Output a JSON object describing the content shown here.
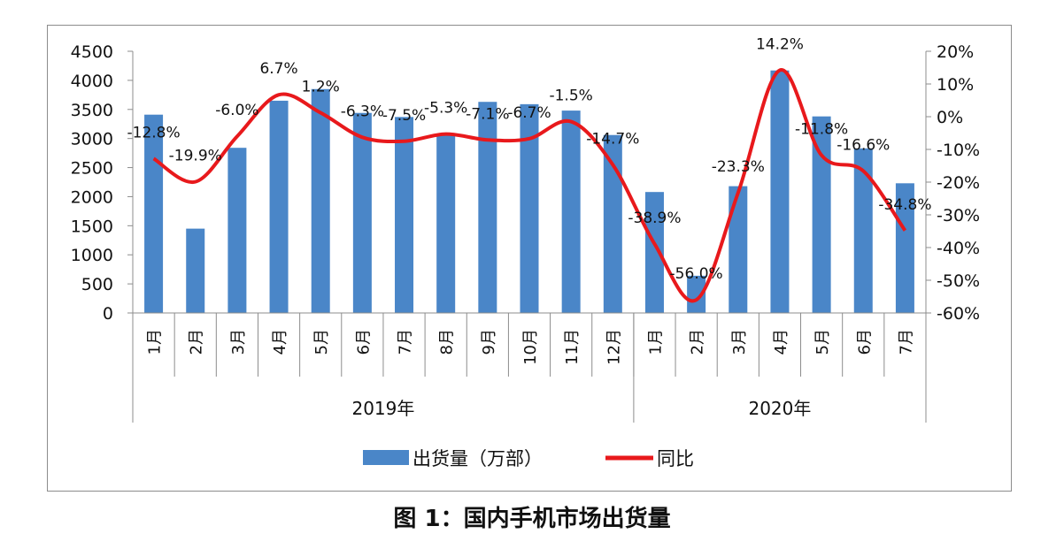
{
  "chart_data": {
    "type": "bar+line",
    "title": "图 1：国内手机市场出货量",
    "categories": [
      "1月",
      "2月",
      "3月",
      "4月",
      "5月",
      "6月",
      "7月",
      "8月",
      "9月",
      "10月",
      "11月",
      "12月",
      "1月",
      "2月",
      "3月",
      "4月",
      "5月",
      "6月",
      "7月"
    ],
    "groups": [
      {
        "label": "2019年",
        "count": 12
      },
      {
        "label": "2020年",
        "count": 7
      }
    ],
    "series": [
      {
        "name": "出货量（万部）",
        "type": "bar",
        "axis": "left",
        "color": "#4a86c8",
        "values": [
          3410,
          1450,
          2840,
          3650,
          3850,
          3440,
          3370,
          3080,
          3630,
          3590,
          3480,
          3060,
          2080,
          640,
          2180,
          4170,
          3380,
          2830,
          2230
        ]
      },
      {
        "name": "同比",
        "type": "line",
        "axis": "right",
        "color": "#e8191c",
        "values": [
          -12.8,
          -19.9,
          -6.0,
          6.7,
          1.2,
          -6.3,
          -7.5,
          -5.3,
          -7.1,
          -6.7,
          -1.5,
          -14.7,
          -38.9,
          -56.0,
          -23.3,
          14.2,
          -11.8,
          -16.6,
          -34.8
        ],
        "labels": [
          "-12.8%",
          "-19.9%",
          "-6.0%",
          "6.7%",
          "1.2%",
          "-6.3%",
          "-7.5%",
          "-5.3%",
          "-7.1%",
          "-6.7%",
          "-1.5%",
          "-14.7%",
          "-38.9%",
          "-56.0%",
          "-23.3%",
          "14.2%",
          "-11.8%",
          "-16.6%",
          "-34.8%"
        ]
      }
    ],
    "y_left": {
      "min": 0,
      "max": 4500,
      "step": 500,
      "ticks": [
        "0",
        "500",
        "1000",
        "1500",
        "2000",
        "2500",
        "3000",
        "3500",
        "4000",
        "4500"
      ]
    },
    "y_right": {
      "min": -60,
      "max": 20,
      "step": 10,
      "ticks": [
        "-60%",
        "-50%",
        "-40%",
        "-30%",
        "-20%",
        "-10%",
        "0%",
        "10%",
        "20%"
      ]
    },
    "legend": [
      {
        "label": "出货量（万部）",
        "kind": "bar",
        "color": "#4a86c8"
      },
      {
        "label": "同比",
        "kind": "line",
        "color": "#e8191c"
      }
    ],
    "legend_position": "bottom"
  }
}
